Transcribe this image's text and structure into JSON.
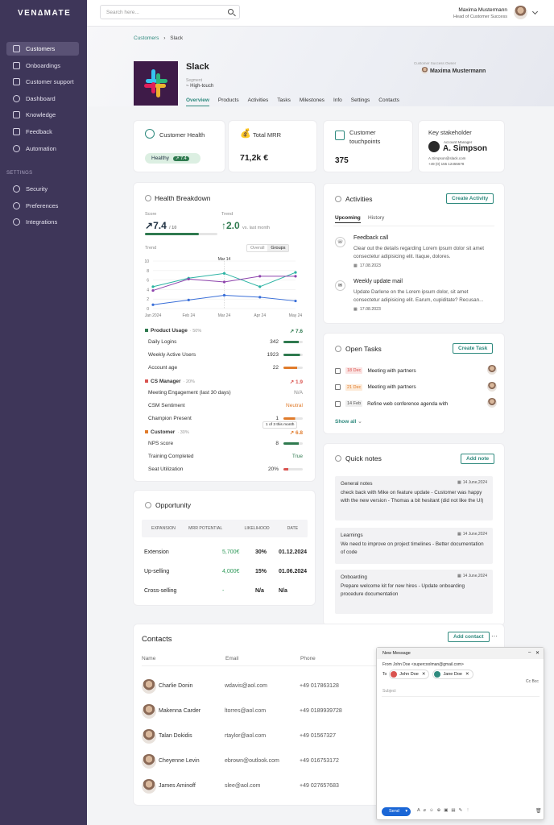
{
  "app": {
    "logo": "VEN∆MATE"
  },
  "sidebar": {
    "items": [
      {
        "label": "Customers",
        "icon": "customers-icon"
      },
      {
        "label": "Onboardings",
        "icon": "onboardings-icon"
      },
      {
        "label": "Customer support",
        "icon": "support-icon"
      },
      {
        "label": "Dashboard",
        "icon": "dashboard-icon"
      },
      {
        "label": "Knowledge",
        "icon": "knowledge-icon"
      },
      {
        "label": "Feedback",
        "icon": "feedback-icon"
      },
      {
        "label": "Automation",
        "icon": "automation-icon"
      }
    ],
    "settings_label": "SETTINGS",
    "settings_items": [
      {
        "label": "Security",
        "icon": "security-icon"
      },
      {
        "label": "Preferences",
        "icon": "preferences-icon"
      },
      {
        "label": "Integrations",
        "icon": "integrations-icon"
      }
    ]
  },
  "topbar": {
    "search_placeholder": "Search here...",
    "user_name": "Maxima Mustermann",
    "user_role": "Head of Customer Success"
  },
  "breadcrumb": {
    "root": "Customers",
    "current": "Slack"
  },
  "company": {
    "name": "Slack",
    "segment_label": "Segment",
    "segment_value": "~ High-touch",
    "owner_label": "Customer Success Owner",
    "owner_name": "Maxima Mustermann"
  },
  "tabs": [
    "Overview",
    "Products",
    "Activities",
    "Tasks",
    "Milestones",
    "Info",
    "Settings",
    "Contacts"
  ],
  "kpis": {
    "health": {
      "title": "Customer Health",
      "badge": "Healthy",
      "score": "7.4"
    },
    "mrr": {
      "title": "Total MRR",
      "value": "71,2k €"
    },
    "touch": {
      "title": "Customer touchpoints",
      "value": "375"
    },
    "stake": {
      "title": "Key stakeholder",
      "role": "Account Manager",
      "name": "A. Simpson",
      "email": "A.Simpson@slack.com",
      "phone": "+49 (0) 155 12455678"
    }
  },
  "health": {
    "title": "Health Breakdown",
    "score_label": "Score",
    "score": "7.4",
    "score_max": "/ 10",
    "trend_label": "Trend",
    "trend": "2.0",
    "trend_suffix": "vs. last month",
    "chart_label": "Trend",
    "toggle_overall": "Overall",
    "toggle_groups": "Groups",
    "tooltip": "Mar 14",
    "groups": [
      {
        "name": "Product Usage",
        "weight": "· 50%",
        "score": "7.6",
        "color": "#2f7a4f",
        "items": [
          {
            "label": "Daily Logins",
            "value": "342",
            "color": "#2f7a4f",
            "fill": 0.8
          },
          {
            "label": "Weekly Active Users",
            "value": "1923",
            "color": "#2f7a4f",
            "fill": 0.85
          },
          {
            "label": "Account age",
            "value": "22",
            "color": "#e07b2b",
            "fill": 0.7
          }
        ]
      },
      {
        "name": "CS Manager",
        "weight": "· 20%",
        "score": "1.9",
        "color": "#d9534f",
        "items": [
          {
            "label": "Meeting Engagement (last 30 days)",
            "value": "N/A"
          },
          {
            "label": "CSM Sentiment",
            "value": "Neutral"
          },
          {
            "label": "Champion Present",
            "value": "1",
            "color": "#e07b2b",
            "fill": 0.6
          }
        ]
      },
      {
        "name": "Customer",
        "weight": "· 30%",
        "score": "6.8",
        "color": "#e07b2b",
        "items": [
          {
            "label": "NPS score",
            "value": "8",
            "color": "#2f7a4f",
            "fill": 0.8
          },
          {
            "label": "Training Completed",
            "value": "True"
          },
          {
            "label": "Seat Utilization",
            "value": "20%",
            "color": "#d9534f",
            "fill": 0.25
          }
        ]
      }
    ],
    "hover_tip": "1 of 3 this month"
  },
  "chart_data": {
    "type": "line",
    "x": [
      "Jan 2024",
      "Feb 24",
      "Mar 24",
      "Apr 24",
      "May 24"
    ],
    "ylim": [
      0,
      10
    ],
    "yticks": [
      "10",
      "8",
      "6",
      "4",
      "2",
      "0"
    ],
    "series": [
      {
        "color": "#2bb3a3",
        "values": [
          4.6,
          6.4,
          7.4,
          4.6,
          7.6
        ]
      },
      {
        "color": "#8e44ad",
        "values": [
          3.8,
          6.2,
          5.6,
          6.8,
          6.8
        ]
      },
      {
        "color": "#3a6fd8",
        "values": [
          0.8,
          1.8,
          2.8,
          2.4,
          1.6
        ]
      }
    ]
  },
  "opportunity": {
    "title": "Opportunity",
    "headers": [
      "EXPANSION",
      "MRR POTENTIAL",
      "LIKELIHOOD",
      "DATE"
    ],
    "rows": [
      [
        "Extension",
        "5,700€",
        "30%",
        "01.12.2024"
      ],
      [
        "Up-selling",
        "4,000€",
        "15%",
        "01.06.2024"
      ],
      [
        "Cross-selling",
        "-",
        "N/a",
        "N/a"
      ]
    ]
  },
  "activities": {
    "title": "Activities",
    "button": "Create Activity",
    "tab_upcoming": "Upcoming",
    "tab_history": "History",
    "items": [
      {
        "title": "Feedback call",
        "text": "Clear out the details regarding Lorem ipsum dolor sit amet consectetur adipisicing elit. Itaque, dolores.",
        "date": "17.08.2023"
      },
      {
        "title": "Weekly update mail",
        "text": "Update Darlene on the Lorem ipsum dolor, sit amet consectetur adipisicing elit. Earum, cupiditate? Recusan...",
        "date": "17.08.2023"
      }
    ]
  },
  "tasks": {
    "title": "Open Tasks",
    "button": "Create Task",
    "show_all": "Show all",
    "items": [
      {
        "date": "18 Dec",
        "text": "Meeting with partners",
        "dcolor": "#d9534f",
        "dbg": "#fbe3e2"
      },
      {
        "date": "21 Dec",
        "text": "Meeting with partners",
        "dcolor": "#e07b2b",
        "dbg": "#fdebd9"
      },
      {
        "date": "14 Feb",
        "text": "Refine web conference agenda with",
        "dcolor": "#555",
        "dbg": "#eee"
      }
    ]
  },
  "notes": {
    "title": "Quick notes",
    "button": "Add note",
    "items": [
      {
        "title": "General notes",
        "date": "14 June,2024",
        "text": "check back with Mike on feature update - Customer was happy with the new version - Thomas a bit hesitant (did not like the UI)"
      },
      {
        "title": "Learnings",
        "date": "14 June,2024",
        "text": "We need to improve on project timelines - Better documentation of code"
      },
      {
        "title": "Onboarding",
        "date": "14 June,2024",
        "text": "Prepare welcome kit for new hires - Update onboarding procedure documentation"
      }
    ]
  },
  "contacts": {
    "title": "Contacts",
    "button": "Add contact",
    "headers": [
      "Name",
      "Email",
      "Phone"
    ],
    "rows": [
      {
        "name": "Charlie Donin",
        "email": "wdavis@aol.com",
        "phone": "+49 017863128"
      },
      {
        "name": "Makenna Carder",
        "email": "ltorres@aol.com",
        "phone": "+49 0189939728"
      },
      {
        "name": "Talan Dokidis",
        "email": "rtaylor@aol.com",
        "phone": "+49 01567327"
      },
      {
        "name": "Cheyenne Levin",
        "email": "ebrown@outlook.com",
        "phone": "+49 016753172"
      },
      {
        "name": "James Aminoff",
        "email": "slee@aol.com",
        "phone": "+49 027657683"
      }
    ]
  },
  "mail": {
    "title": "New Message",
    "from": "From John Doe <supercoolman@gmail.com>",
    "to_label": "To",
    "recipients": [
      {
        "name": "John Doe",
        "color": "#d9534f"
      },
      {
        "name": "Jane Doe",
        "color": "#2f8a7e"
      }
    ],
    "cc": "Cc Bcc",
    "subject": "Subject",
    "send": "Send"
  }
}
